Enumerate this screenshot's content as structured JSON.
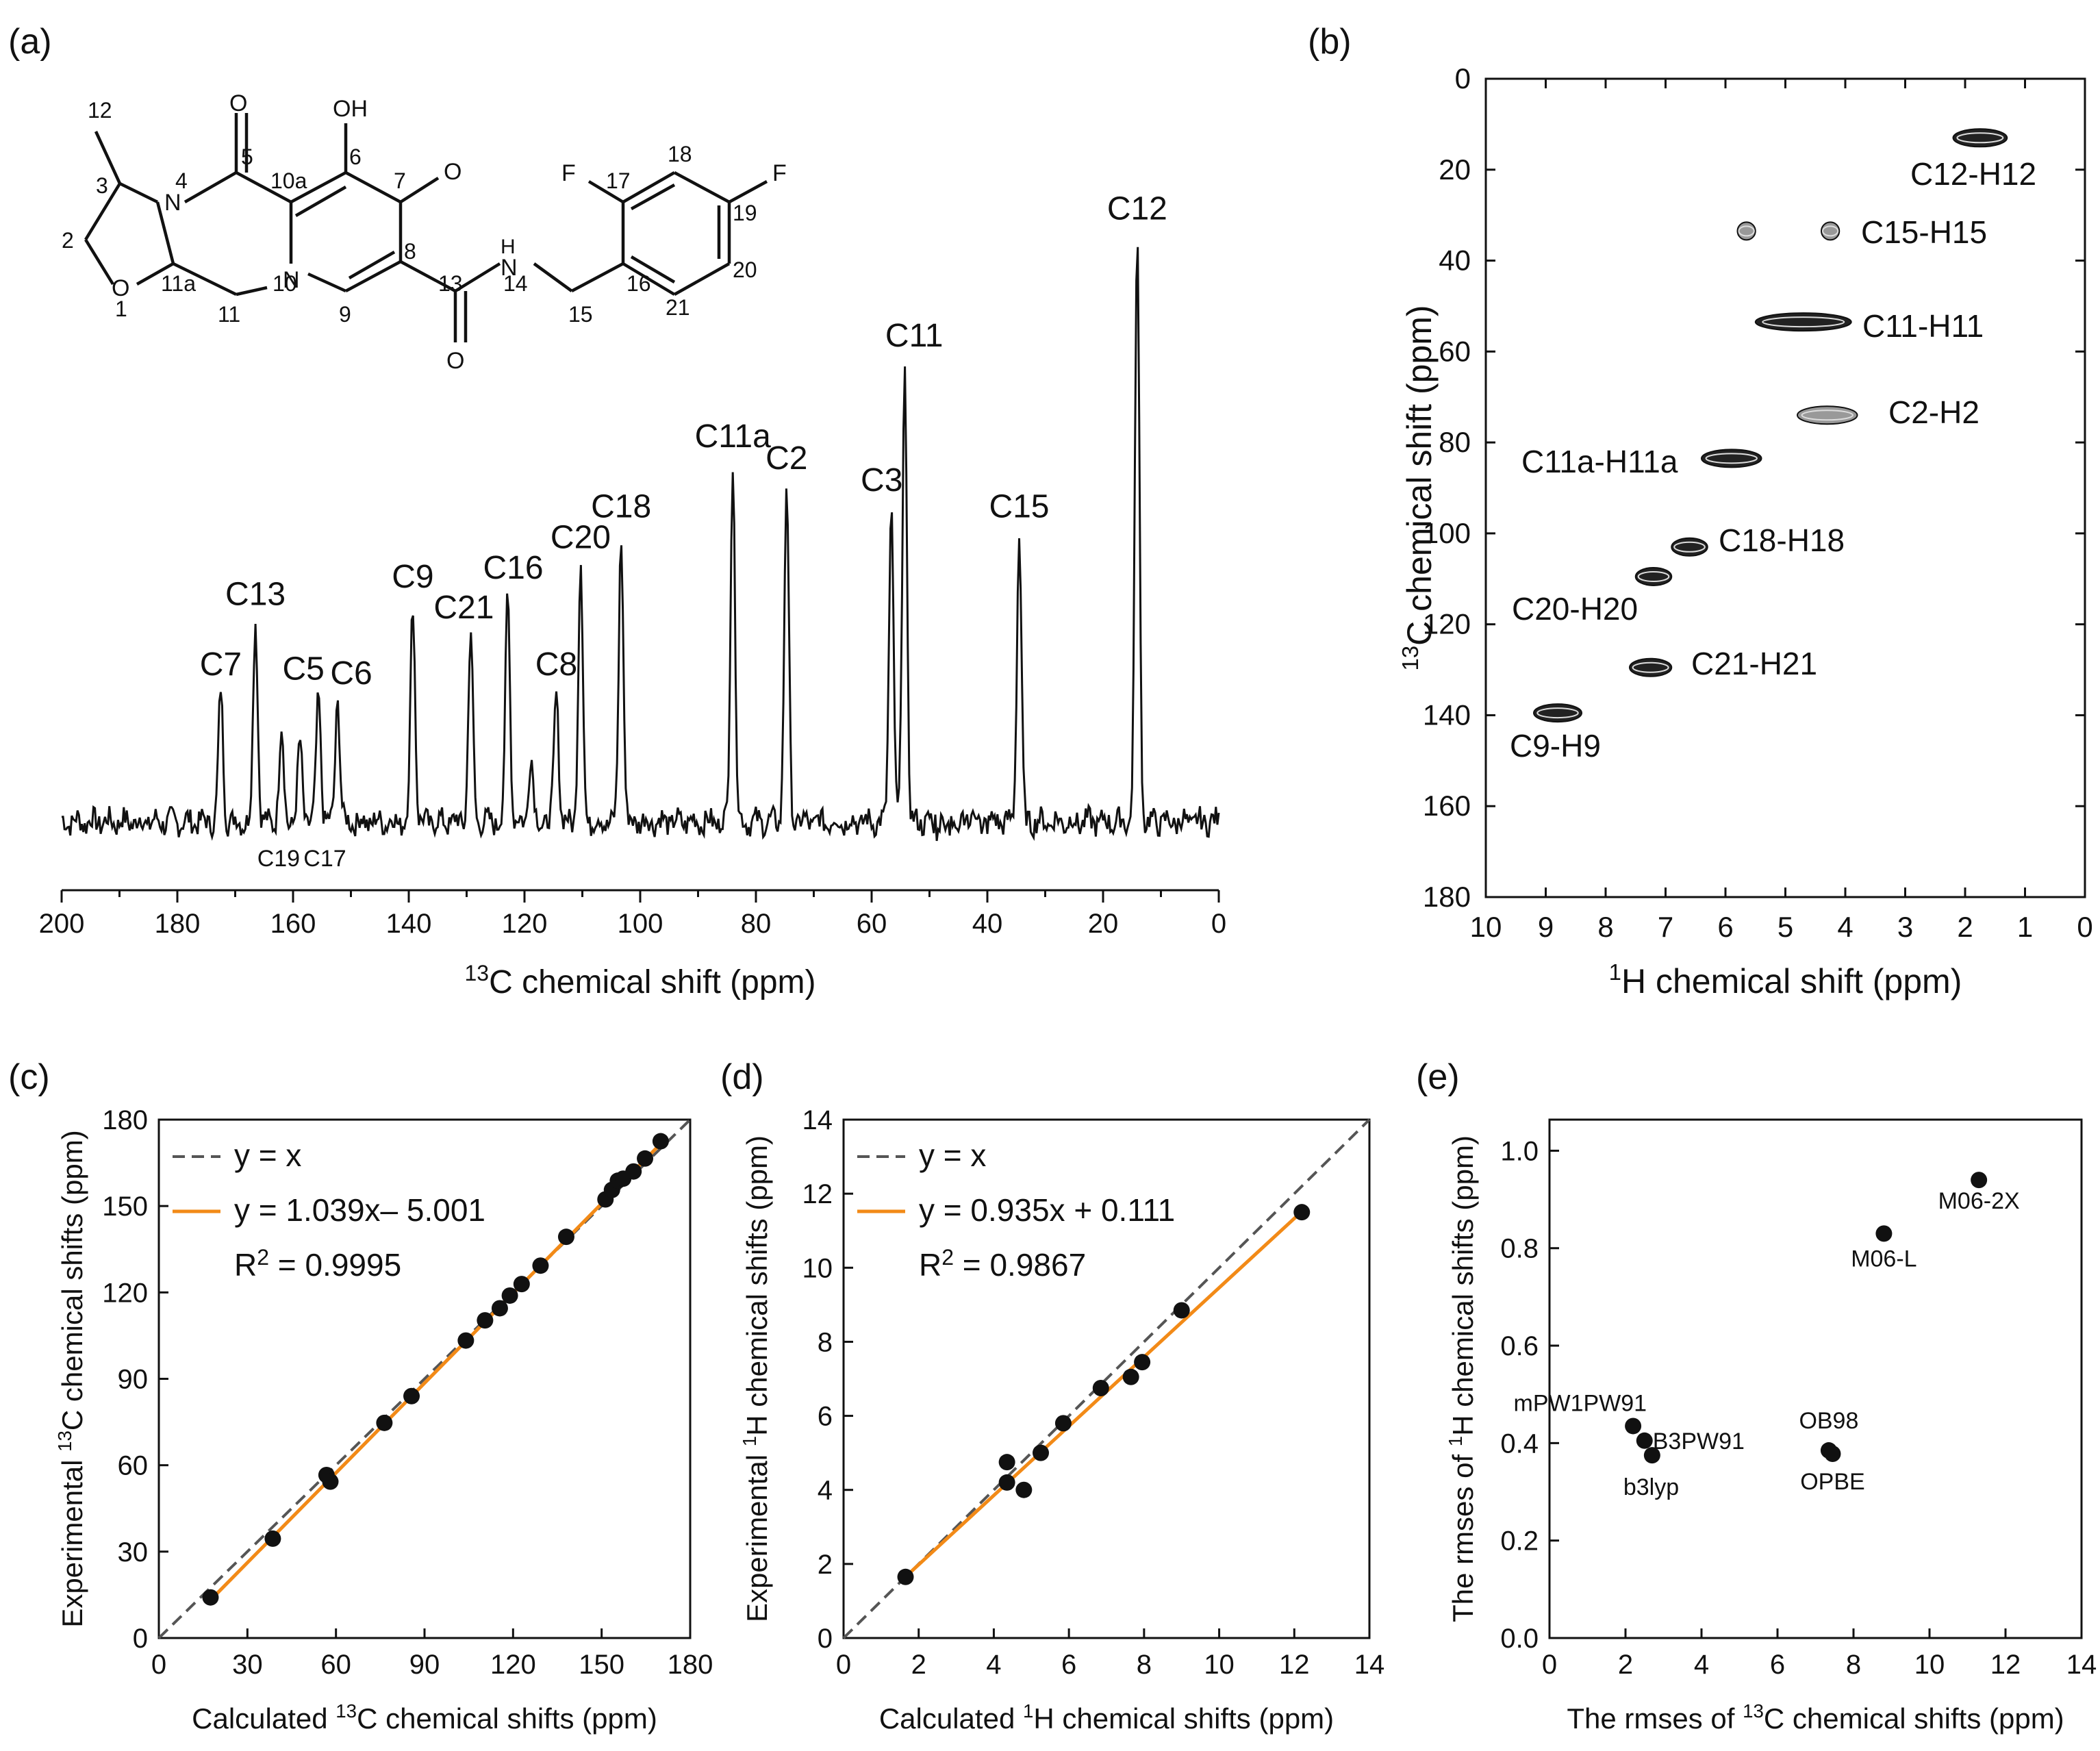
{
  "colors": {
    "ink": "#111111",
    "orange": "#f28a17",
    "dash": "#555555"
  },
  "chart_data": [
    {
      "panel": "(a)",
      "type": "line",
      "xlabel_sup": "13",
      "xlabel_rest": "C chemical shift (ppm)",
      "xlim": [
        200,
        0
      ],
      "ticks": [
        200,
        180,
        160,
        140,
        120,
        100,
        80,
        60,
        40,
        20,
        0
      ],
      "peaks": [
        {
          "label": "C7",
          "x": 172.5,
          "h": 0.3
        },
        {
          "label": "C13",
          "x": 166.5,
          "h": 0.46
        },
        {
          "label": "C5",
          "x": 155.6,
          "h": 0.29
        },
        {
          "label": "C6",
          "x": 152.3,
          "h": 0.28
        },
        {
          "label": "C9",
          "x": 139.3,
          "h": 0.5
        },
        {
          "label": "C21",
          "x": 129.3,
          "h": 0.43
        },
        {
          "label": "C16",
          "x": 122.9,
          "h": 0.52
        },
        {
          "label": "C8",
          "x": 114.5,
          "h": 0.3
        },
        {
          "label": "C20",
          "x": 110.3,
          "h": 0.59
        },
        {
          "label": "C18",
          "x": 103.3,
          "h": 0.66
        },
        {
          "label": "C11a",
          "x": 84.0,
          "h": 0.82
        },
        {
          "label": "C2",
          "x": 74.7,
          "h": 0.77
        },
        {
          "label": "C3",
          "x": 56.6,
          "h": 0.72
        },
        {
          "label": "C11",
          "x": 54.3,
          "h": 1.05
        },
        {
          "label": "C15",
          "x": 34.5,
          "h": 0.66
        },
        {
          "label": "C12",
          "x": 14.1,
          "h": 1.34
        }
      ],
      "minor_peaks": [
        {
          "x": 162.0,
          "h": 0.21
        },
        {
          "x": 158.8,
          "h": 0.18
        },
        {
          "x": 118.9,
          "h": 0.15
        }
      ],
      "below_labels": [
        "C19",
        "C17"
      ],
      "structure": {
        "atom_labels": [
          "12",
          "3",
          "4",
          "5",
          "10a",
          "6",
          "7",
          "2",
          "11a",
          "1",
          "11",
          "10",
          "9",
          "8",
          "13",
          "14",
          "15",
          "16",
          "17",
          "18",
          "19",
          "20",
          "21"
        ],
        "hetero_labels": [
          "O",
          "OH",
          "O",
          "N",
          "N",
          "O",
          "H",
          "N",
          "O",
          "F",
          "F"
        ]
      }
    },
    {
      "panel": "(b)",
      "type": "heatmap",
      "xlabel_sup": "1",
      "xlabel_rest": "H chemical shift (ppm)",
      "ylabel_sup": "13",
      "ylabel_rest": "C chemical shift (ppm)",
      "xlim": [
        10,
        0
      ],
      "ylim": [
        0,
        180
      ],
      "xticks": [
        10,
        9,
        8,
        7,
        6,
        5,
        4,
        3,
        2,
        1,
        0
      ],
      "yticks": [
        0,
        20,
        40,
        60,
        80,
        100,
        120,
        140,
        160,
        180
      ],
      "cross_peaks": [
        {
          "label": "C12-H12",
          "h1": 1.3,
          "h2": 2.2,
          "c": 13,
          "tone": "dark"
        },
        {
          "label": "C15-H15",
          "h1": 5.5,
          "h2": 5.8,
          "c": 33.5,
          "tone": "light",
          "h1b": 4.1,
          "h2b": 4.4
        },
        {
          "label": "C11-H11",
          "h1": 3.9,
          "h2": 5.5,
          "c": 53.5,
          "tone": "dark"
        },
        {
          "label": "C2-H2",
          "h1": 3.8,
          "h2": 4.8,
          "c": 74,
          "tone": "light"
        },
        {
          "label": "C11a-H11a",
          "h1": 5.4,
          "h2": 6.4,
          "c": 83.5,
          "tone": "dark"
        },
        {
          "label": "C18-H18",
          "h1": 6.3,
          "h2": 6.9,
          "c": 103,
          "tone": "dark"
        },
        {
          "label": "C20-H20",
          "h1": 6.9,
          "h2": 7.5,
          "c": 109.5,
          "tone": "dark"
        },
        {
          "label": "C21-H21",
          "h1": 6.9,
          "h2": 7.6,
          "c": 129.5,
          "tone": "dark"
        },
        {
          "label": "C9-H9",
          "h1": 8.4,
          "h2": 9.2,
          "c": 139.5,
          "tone": "dark"
        }
      ]
    },
    {
      "panel": "(c)",
      "type": "scatter",
      "xlabel_pre": "Calculated ",
      "xlabel_sup": "13",
      "xlabel_rest": "C  chemical shifts (ppm)",
      "ylabel_pre": "Experimental ",
      "ylabel_sup": "13",
      "ylabel_rest": "C chemical shifts (ppm)",
      "xlim": [
        0,
        180
      ],
      "ylim": [
        0,
        180
      ],
      "xticks": [
        0,
        30,
        60,
        90,
        120,
        150,
        180
      ],
      "yticks": [
        0,
        30,
        60,
        90,
        120,
        150,
        180
      ],
      "legend": [
        "y = x",
        "y = 1.039x– 5.001"
      ],
      "r2_pre": "R",
      "r2_sup": "2",
      "r2_rest": " = 0.9995",
      "fit": {
        "slope": 1.039,
        "intercept": -5.001
      },
      "points": [
        [
          17.5,
          14.1
        ],
        [
          38.6,
          34.5
        ],
        [
          56.8,
          56.6
        ],
        [
          58.1,
          54.3
        ],
        [
          76.4,
          74.7
        ],
        [
          85.6,
          84.0
        ],
        [
          104.0,
          103.3
        ],
        [
          110.5,
          110.3
        ],
        [
          115.5,
          114.5
        ],
        [
          118.9,
          118.9
        ],
        [
          122.9,
          122.9
        ],
        [
          129.3,
          129.3
        ],
        [
          138.0,
          139.3
        ],
        [
          151.3,
          152.3
        ],
        [
          153.5,
          155.6
        ],
        [
          155.5,
          158.8
        ],
        [
          157.3,
          159.5
        ],
        [
          160.8,
          162.0
        ],
        [
          164.7,
          166.5
        ],
        [
          170.0,
          172.5
        ]
      ]
    },
    {
      "panel": "(d)",
      "type": "scatter",
      "xlabel_pre": "Calculated ",
      "xlabel_sup": "1",
      "xlabel_rest": "H chemical shifts (ppm)",
      "ylabel_pre": "Experimental ",
      "ylabel_sup": "1",
      "ylabel_rest": "H chemical shifts (ppm)",
      "xlim": [
        0,
        14
      ],
      "ylim": [
        0,
        14
      ],
      "xticks": [
        0,
        2,
        4,
        6,
        8,
        10,
        12,
        14
      ],
      "yticks": [
        0,
        2,
        4,
        6,
        8,
        10,
        12,
        14
      ],
      "legend": [
        "y = x",
        "y = 0.935x + 0.111"
      ],
      "r2_pre": "R",
      "r2_sup": "2",
      "r2_rest": " = 0.9867",
      "fit": {
        "slope": 0.935,
        "intercept": 0.111
      },
      "points": [
        [
          1.65,
          1.65
        ],
        [
          4.35,
          4.75
        ],
        [
          4.35,
          4.2
        ],
        [
          4.8,
          4.0
        ],
        [
          5.25,
          5.0
        ],
        [
          5.85,
          5.8
        ],
        [
          6.85,
          6.75
        ],
        [
          7.65,
          7.05
        ],
        [
          7.95,
          7.45
        ],
        [
          9.0,
          8.85
        ],
        [
          12.2,
          11.5
        ]
      ]
    },
    {
      "panel": "(e)",
      "type": "scatter",
      "xlabel_pre": "The rmses of ",
      "xlabel_sup": "13",
      "xlabel_rest": "C chemical shifts (ppm)",
      "ylabel_pre": "The rmses of ",
      "ylabel_sup": "1",
      "ylabel_rest": "H chemical shifts  (ppm)",
      "xlim": [
        0,
        14
      ],
      "ylim": [
        0,
        1.0
      ],
      "xticks": [
        0,
        2,
        4,
        6,
        8,
        10,
        12,
        14
      ],
      "yticks": [
        "0.0",
        "0.2",
        "0.4",
        "0.6",
        "0.8",
        "1.0"
      ],
      "points": [
        {
          "name": "M06-2X",
          "x": 11.3,
          "y": 0.94
        },
        {
          "name": "M06-L",
          "x": 8.8,
          "y": 0.83
        },
        {
          "name": "mPW1PW91",
          "x": 2.2,
          "y": 0.435
        },
        {
          "name": "B3PW91",
          "x": 2.5,
          "y": 0.405
        },
        {
          "name": "b3lyp",
          "x": 2.7,
          "y": 0.375
        },
        {
          "name": "OB98",
          "x": 7.35,
          "y": 0.385
        },
        {
          "name": "OPBE",
          "x": 7.45,
          "y": 0.378
        }
      ]
    }
  ]
}
